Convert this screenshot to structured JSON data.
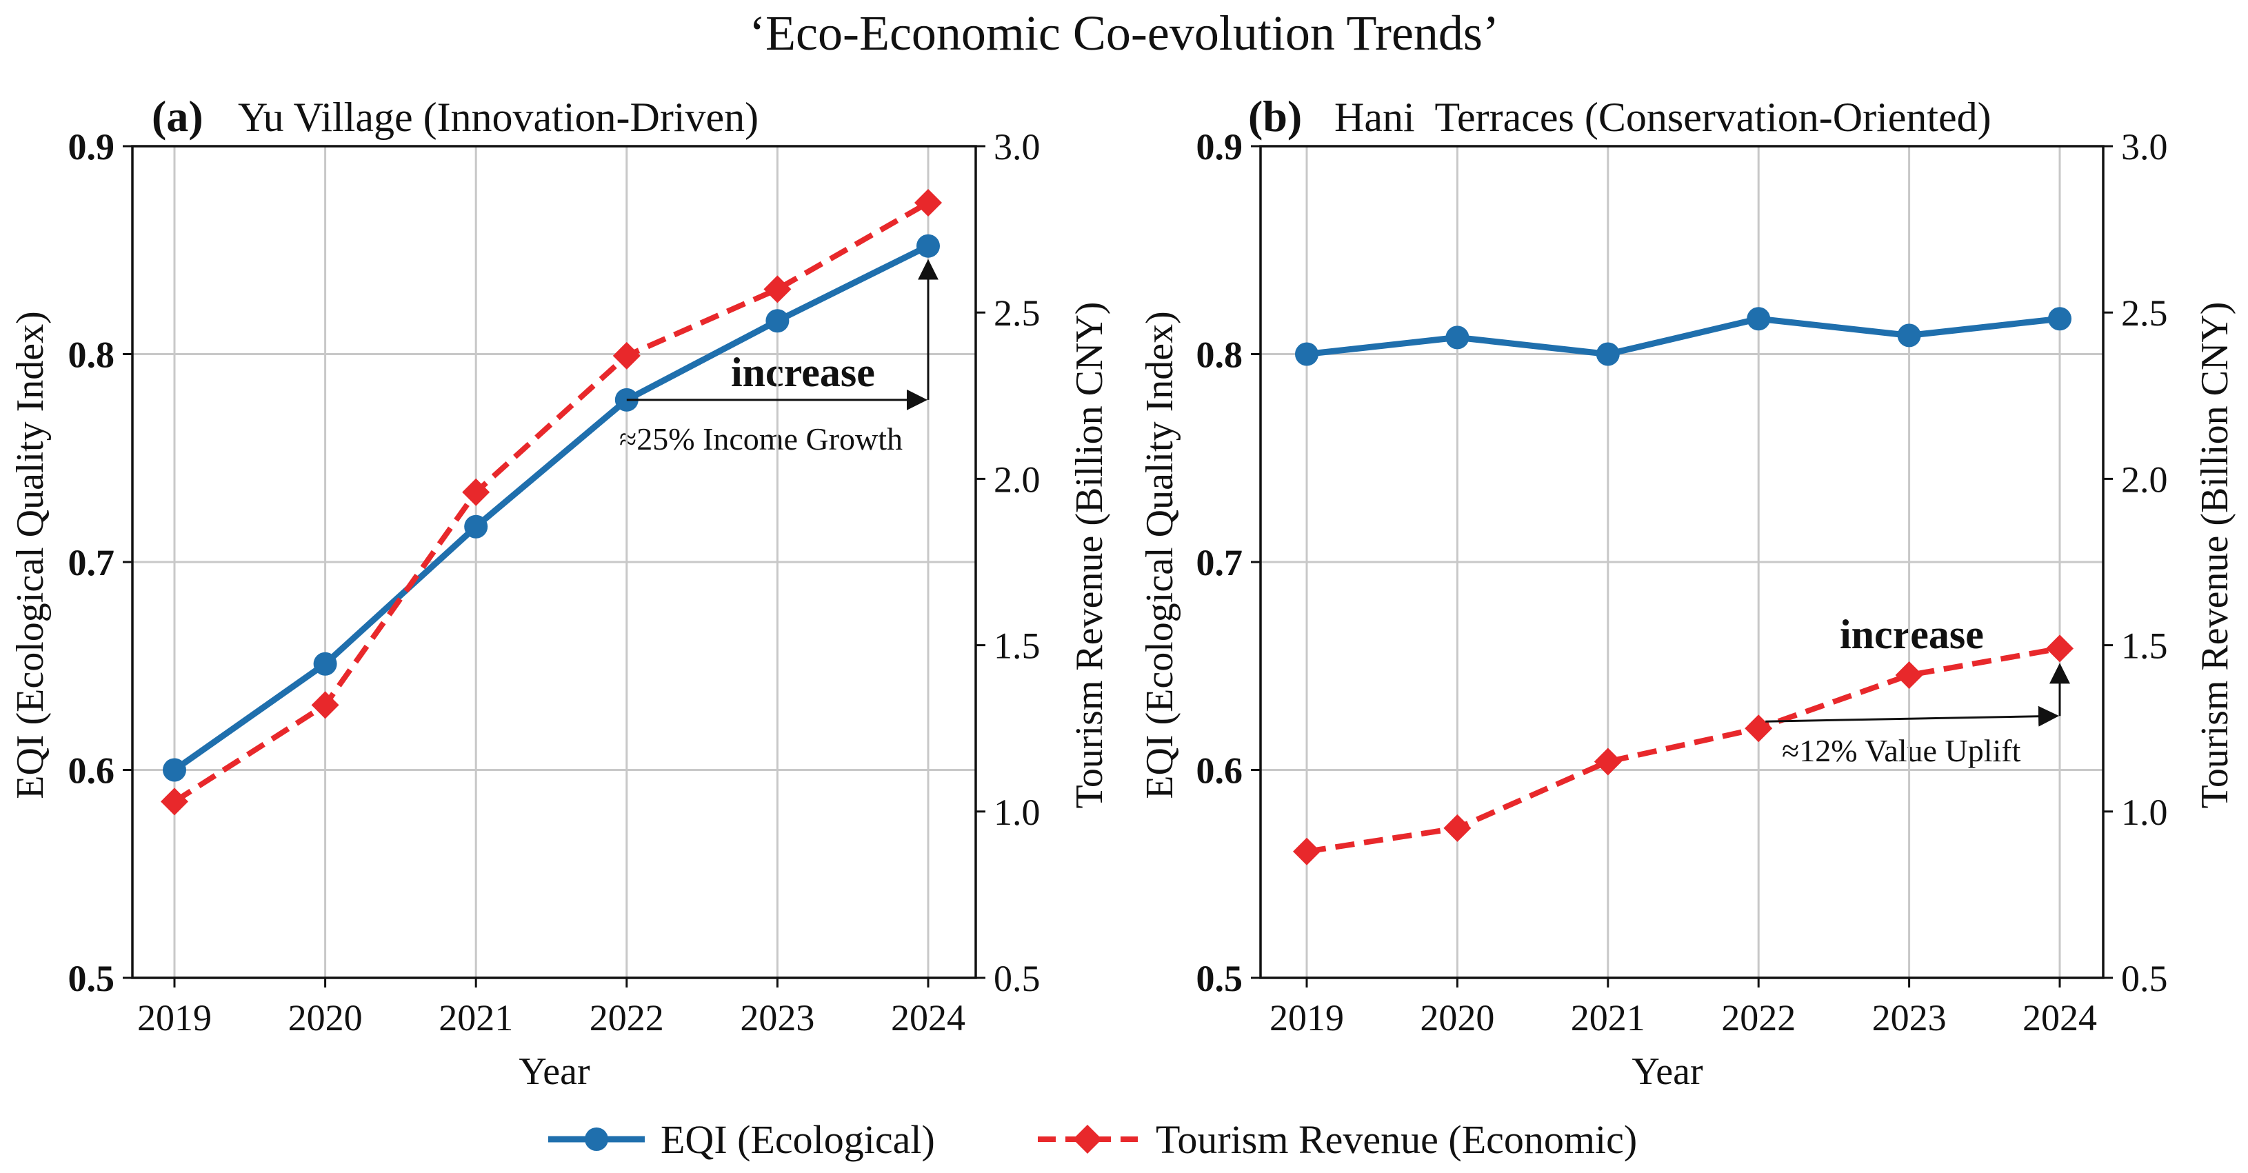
{
  "chart_data": {
    "type": "line",
    "title": "‘Eco-Economic Co-evolution Trends’",
    "legend": [
      {
        "name": "EQI (Ecological)",
        "color": "#1f6fad",
        "marker": "circle",
        "style": "solid"
      },
      {
        "name": "Tourism Revenue (Economic)",
        "color": "#e8282b",
        "marker": "diamond",
        "style": "dashed"
      }
    ],
    "panels": [
      {
        "label": "(a)",
        "subtitle": "Yu Village (Innovation-Driven)",
        "xlabel": "Year",
        "ylabel_left": "EQI (Ecological Quality Index)",
        "ylabel_right": "Tourism Revenue (Billion CNY)",
        "x": [
          "2019",
          "2020",
          "2021",
          "2022",
          "2023",
          "2024"
        ],
        "ylim_left": [
          0.5,
          0.9
        ],
        "yticks_left": [
          "0.5",
          "0.6",
          "0.7",
          "0.8",
          "0.9"
        ],
        "ylim_right": [
          0.5,
          3.0
        ],
        "yticks_right": [
          "0.5",
          "1.0",
          "1.5",
          "2.0",
          "2.5",
          "3.0"
        ],
        "series": [
          {
            "name": "EQI (Ecological)",
            "axis": "left",
            "values": [
              0.6,
              0.651,
              0.717,
              0.778,
              0.816,
              0.852
            ]
          },
          {
            "name": "Tourism Revenue (Economic)",
            "axis": "right",
            "values": [
              1.03,
              1.32,
              1.96,
              2.37,
              2.57,
              2.83
            ]
          }
        ],
        "annotation": {
          "bold": "increase",
          "text": "≈25% Income Growth"
        }
      },
      {
        "label": "(b)",
        "subtitle": "Hani  Terraces (Conservation-Oriented)",
        "xlabel": "Year",
        "ylabel_left": "EQI (Ecological Quality Index)",
        "ylabel_right": "Tourism Revenue (Billion CNY)",
        "x": [
          "2019",
          "2020",
          "2021",
          "2022",
          "2023",
          "2024"
        ],
        "ylim_left": [
          0.5,
          0.9
        ],
        "yticks_left": [
          "0.5",
          "0.6",
          "0.7",
          "0.8",
          "0.9"
        ],
        "ylim_right": [
          0.5,
          3.0
        ],
        "yticks_right": [
          "0.5",
          "1.0",
          "1.5",
          "2.0",
          "2.5",
          "3.0"
        ],
        "series": [
          {
            "name": "EQI (Ecological)",
            "axis": "left",
            "values": [
              0.8,
              0.808,
              0.8,
              0.817,
              0.809,
              0.817
            ]
          },
          {
            "name": "Tourism Revenue (Economic)",
            "axis": "right",
            "values": [
              0.88,
              0.95,
              1.15,
              1.25,
              1.41,
              1.49
            ]
          }
        ],
        "annotation": {
          "bold": "increase",
          "text": "≈12% Value Uplift"
        }
      }
    ]
  }
}
